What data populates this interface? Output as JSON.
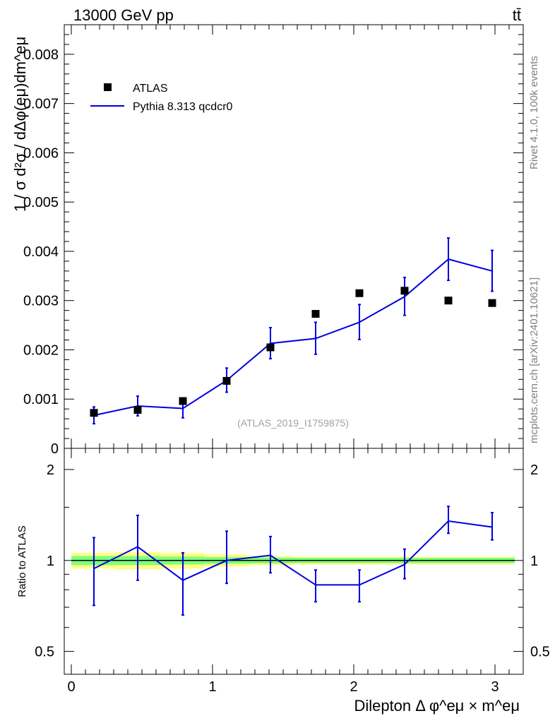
{
  "header": {
    "energy_label": "13000 GeV pp",
    "process_label": "tt̄"
  },
  "side_labels": {
    "rivet": "Rivet 4.1.0,  100k events",
    "source": "mcplots.cern.ch [arXiv:2401.10621]"
  },
  "colors": {
    "data": "#000000",
    "mc": "#0000e0",
    "band_inner": "#7fff7f",
    "band_outer": "#ffff80"
  },
  "chart_data": [
    {
      "type": "scatter",
      "panel": "main",
      "title": "",
      "ylabel": "1 / σ  d²σ / dΔφ(eμ)dm^eμ",
      "analysis_label": "(ATLAS_2019_I1759875)",
      "xlim": [
        -0.05,
        3.2
      ],
      "ylim": [
        0,
        0.0086
      ],
      "y_ticks": [
        0,
        0.001,
        0.002,
        0.003,
        0.004,
        0.005,
        0.006,
        0.007,
        0.008
      ],
      "y_tick_labels": [
        "0",
        "0.001",
        "0.002",
        "0.003",
        "0.004",
        "0.005",
        "0.006",
        "0.007",
        "0.008"
      ],
      "legend": {
        "position": "top-left",
        "entries": [
          "ATLAS",
          "Pythia 8.313 qcdcr0"
        ]
      },
      "series": [
        {
          "name": "ATLAS",
          "style": "markers",
          "x": [
            0.16,
            0.47,
            0.79,
            1.1,
            1.41,
            1.73,
            2.04,
            2.36,
            2.67,
            2.98
          ],
          "values": [
            0.00072,
            0.00078,
            0.00096,
            0.00137,
            0.00205,
            0.00273,
            0.00315,
            0.0032,
            0.003,
            0.00295
          ]
        },
        {
          "name": "Pythia 8.313 qcdcr0",
          "style": "line",
          "x": [
            0.16,
            0.47,
            0.79,
            1.1,
            1.41,
            1.73,
            2.04,
            2.36,
            2.67,
            2.98
          ],
          "values": [
            0.00067,
            0.00086,
            0.00081,
            0.00138,
            0.00213,
            0.00223,
            0.00256,
            0.00308,
            0.00384,
            0.0036
          ],
          "err_low": [
            0.00017,
            0.0002,
            0.00019,
            0.00024,
            0.00031,
            0.00032,
            0.00035,
            0.00038,
            0.00043,
            0.00041
          ],
          "err_high": [
            0.00017,
            0.0002,
            0.00019,
            0.00025,
            0.00032,
            0.00033,
            0.00036,
            0.00039,
            0.00043,
            0.00042
          ]
        }
      ]
    },
    {
      "type": "line",
      "panel": "ratio",
      "ylabel": "Ratio to ATLAS",
      "xlabel": "Dilepton Δ φ^eμ × m^eμ",
      "xlim": [
        -0.05,
        3.2
      ],
      "ylim": [
        0.42,
        2.35
      ],
      "y_scale": "log",
      "x_ticks": [
        0,
        1,
        2,
        3
      ],
      "x_tick_labels": [
        "0",
        "1",
        "2",
        "3"
      ],
      "y_ticks": [
        0.5,
        1,
        2
      ],
      "y_tick_labels": [
        "0.5",
        "1",
        "2"
      ],
      "reference": 1,
      "band_edges": [
        0,
        0.31,
        0.63,
        0.94,
        1.26,
        1.57,
        1.88,
        2.2,
        2.51,
        2.83,
        3.14
      ],
      "band_inner": [
        0.035,
        0.034,
        0.03,
        0.025,
        0.022,
        0.02,
        0.02,
        0.02,
        0.02,
        0.02
      ],
      "band_outer": [
        0.06,
        0.065,
        0.06,
        0.045,
        0.035,
        0.03,
        0.03,
        0.03,
        0.03,
        0.03
      ],
      "series": [
        {
          "name": "Pythia 8.313 qcdcr0",
          "x": [
            0.16,
            0.47,
            0.79,
            1.1,
            1.41,
            1.73,
            2.04,
            2.36,
            2.67,
            2.98
          ],
          "values": [
            0.94,
            1.11,
            0.86,
            1.0,
            1.04,
            0.83,
            0.83,
            0.97,
            1.35,
            1.29
          ],
          "err_low": [
            0.23,
            0.25,
            0.2,
            0.16,
            0.13,
            0.1,
            0.1,
            0.1,
            0.12,
            0.12
          ],
          "err_high": [
            0.25,
            0.3,
            0.2,
            0.25,
            0.16,
            0.1,
            0.1,
            0.12,
            0.16,
            0.15
          ]
        }
      ]
    }
  ]
}
